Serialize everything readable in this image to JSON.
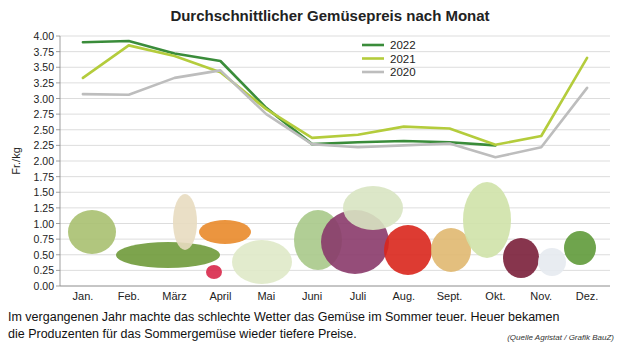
{
  "chart_data": {
    "type": "line",
    "title": "Durchschnittlicher Gemüsepreis nach Monat",
    "y_label": "Fr./kg",
    "annotations": [
      "Im vergangenen Jahr machte das schlechte Wetter das Gemüse im Sommer teuer. Heuer bekamen",
      "die Produzenten für das Sommergemüse wieder tiefere Preise.",
      "(Quelle Agristat / Grafik BauZ)"
    ],
    "categories": [
      "Jan.",
      "Feb.",
      "März",
      "April",
      "Mai",
      "Juni",
      "Juli",
      "Aug.",
      "Sept.",
      "Okt.",
      "Nov.",
      "Dez."
    ],
    "series": [
      {
        "name": "2022",
        "color": "#3a8c3a",
        "values": [
          3.9,
          3.92,
          3.72,
          3.6,
          2.85,
          2.27,
          2.3,
          2.32,
          2.3,
          2.25,
          null,
          null
        ]
      },
      {
        "name": "2021",
        "color": "#b4cc3c",
        "values": [
          3.33,
          3.85,
          3.68,
          3.42,
          2.83,
          2.37,
          2.42,
          2.55,
          2.52,
          2.26,
          2.4,
          3.65
        ]
      },
      {
        "name": "2020",
        "color": "#bdbdbd",
        "values": [
          3.07,
          3.06,
          3.33,
          3.45,
          2.75,
          2.27,
          2.22,
          2.25,
          2.28,
          2.06,
          2.22,
          3.17
        ]
      }
    ],
    "ylim": [
      0,
      4
    ],
    "yticks": [
      {
        "value": 0,
        "label": "0.00"
      },
      {
        "value": 0.25,
        "label": "0.25"
      },
      {
        "value": 0.5,
        "label": "0.50"
      },
      {
        "value": 0.75,
        "label": "0.75"
      },
      {
        "value": 1,
        "label": "1.00"
      },
      {
        "value": 1.25,
        "label": "1.25"
      },
      {
        "value": 1.5,
        "label": "1.50"
      },
      {
        "value": 1.75,
        "label": "1.75"
      },
      {
        "value": 2,
        "label": "2.00"
      },
      {
        "value": 2.25,
        "label": "2.25"
      },
      {
        "value": 2.5,
        "label": "2.50"
      },
      {
        "value": 2.75,
        "label": "2.75"
      },
      {
        "value": 3,
        "label": "3.00"
      },
      {
        "value": 3.25,
        "label": "3.25"
      },
      {
        "value": 3.5,
        "label": "3.50"
      },
      {
        "value": 3.75,
        "label": "3.75"
      },
      {
        "value": 4,
        "label": "4.00"
      }
    ],
    "grid": true,
    "legend": "top"
  }
}
